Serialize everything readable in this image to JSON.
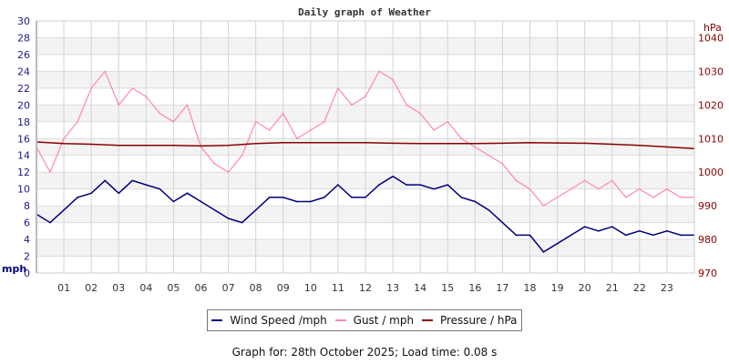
{
  "chart_data": {
    "type": "line",
    "title": "Daily graph of Weather",
    "xlabel": "",
    "ylabel": "mph",
    "y2label": "hPa",
    "xlim": [
      0,
      24
    ],
    "ylim": [
      0,
      30
    ],
    "y2lim": [
      970,
      1045
    ],
    "x_ticks": [
      "01",
      "02",
      "03",
      "04",
      "05",
      "06",
      "07",
      "08",
      "09",
      "10",
      "11",
      "12",
      "13",
      "14",
      "15",
      "16",
      "17",
      "18",
      "19",
      "20",
      "21",
      "22",
      "23"
    ],
    "y_ticks": [
      0,
      2,
      4,
      6,
      8,
      10,
      12,
      14,
      16,
      18,
      20,
      22,
      24,
      26,
      28,
      30
    ],
    "y2_ticks": [
      970,
      980,
      990,
      1000,
      1010,
      1020,
      1030,
      1040
    ],
    "grid": true,
    "legend_position": "bottom",
    "series": [
      {
        "name": "Wind Speed /mph",
        "color": "#000080",
        "axis": "left",
        "x": [
          0,
          0.5,
          1,
          1.5,
          2,
          2.5,
          3,
          3.5,
          4,
          4.5,
          5,
          5.5,
          6,
          6.5,
          7,
          7.5,
          8,
          8.5,
          9,
          9.5,
          10,
          10.5,
          11,
          11.5,
          12,
          12.5,
          13,
          13.5,
          14,
          14.5,
          15,
          15.5,
          16,
          16.5,
          17,
          17.5,
          18,
          18.5,
          19,
          19.5,
          20,
          20.5,
          21,
          21.5,
          22,
          22.5,
          23,
          23.5,
          24
        ],
        "values": [
          7,
          6,
          7.5,
          9,
          9.5,
          11,
          9.5,
          11,
          10.5,
          10,
          8.5,
          9.5,
          8.5,
          7.5,
          6.5,
          6,
          7.5,
          9,
          9,
          8.5,
          8.5,
          9,
          10.5,
          9,
          9,
          10.5,
          11.5,
          10.5,
          10.5,
          10,
          10.5,
          9,
          8.5,
          7.5,
          6,
          4.5,
          4.5,
          2.5,
          3.5,
          4.5,
          5.5,
          5,
          5.5,
          4.5,
          5,
          4.5,
          5,
          4.5,
          4.5
        ]
      },
      {
        "name": "Gust / mph",
        "color": "#ff88aa",
        "axis": "left",
        "x": [
          0,
          0.5,
          1,
          1.5,
          2,
          2.5,
          3,
          3.5,
          4,
          4.5,
          5,
          5.5,
          6,
          6.5,
          7,
          7.5,
          8,
          8.5,
          9,
          9.5,
          10,
          10.5,
          11,
          11.5,
          12,
          12.5,
          13,
          13.5,
          14,
          14.5,
          15,
          15.5,
          16,
          16.5,
          17,
          17.5,
          18,
          18.5,
          19,
          19.5,
          20,
          20.5,
          21,
          21.5,
          22,
          22.5,
          23,
          23.5,
          24
        ],
        "values": [
          15,
          12,
          16,
          18,
          22,
          24,
          20,
          22,
          21,
          19,
          18,
          20,
          15,
          13,
          12,
          14,
          18,
          17,
          19,
          16,
          17,
          18,
          22,
          20,
          21,
          24,
          23,
          20,
          19,
          17,
          18,
          16,
          15,
          14,
          13,
          11,
          10,
          8,
          9,
          10,
          11,
          10,
          11,
          9,
          10,
          9,
          10,
          9,
          9
        ]
      },
      {
        "name": "Pressure / hPa",
        "color": "#8b0000",
        "axis": "right",
        "x": [
          0,
          1,
          2,
          3,
          4,
          5,
          6,
          7,
          8,
          9,
          10,
          11,
          12,
          13,
          14,
          15,
          16,
          17,
          18,
          19,
          20,
          21,
          22,
          23,
          24
        ],
        "values": [
          1009,
          1008.5,
          1008.3,
          1008,
          1008,
          1008,
          1007.8,
          1008,
          1008.5,
          1008.8,
          1008.8,
          1008.8,
          1008.8,
          1008.6,
          1008.5,
          1008.5,
          1008.5,
          1008.6,
          1008.8,
          1008.7,
          1008.6,
          1008.3,
          1008,
          1007.5,
          1007
        ]
      }
    ]
  },
  "footer": "Graph for: 28th October 2025; Load time: 0.08 s"
}
